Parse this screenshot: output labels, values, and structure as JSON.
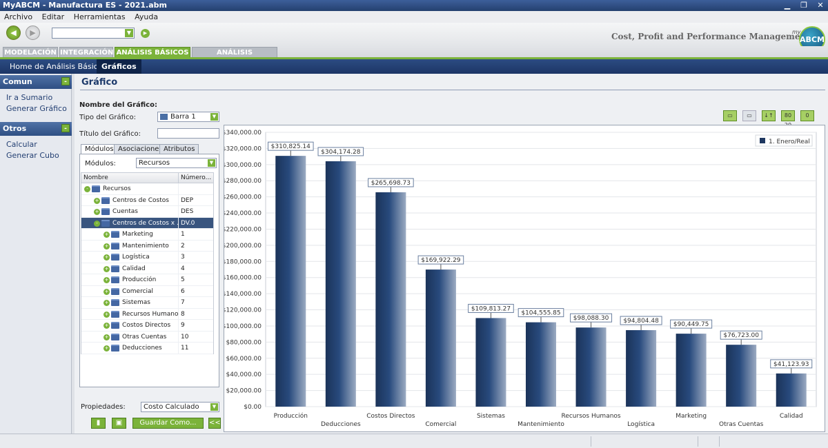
{
  "window": {
    "title": "MyABCM - Manufactura ES - 2021.abm"
  },
  "menu": [
    "Archivo",
    "Editar",
    "Herramientas",
    "Ayuda"
  ],
  "toolbar": {
    "tagline": "Cost, Profit and Performance Management",
    "logo_text": "ABCM",
    "logo_prefix": "my"
  },
  "tabs": [
    "MODELACIÓN",
    "INTEGRACIÓN",
    "ANÁLISIS BÁSICOS",
    "ANÁLISIS AVANZADOS"
  ],
  "subnav": [
    "Home de Análisis Básico",
    "Gráficos"
  ],
  "left_panel": {
    "sections": [
      {
        "title": "Comun",
        "toggle": "-",
        "links": [
          "Ir a Sumario",
          "Generar Gráfico"
        ]
      },
      {
        "title": "Otros",
        "toggle": "-",
        "links": [
          "Calcular",
          "Generar Cubo"
        ]
      }
    ]
  },
  "main": {
    "title": "Gráfico",
    "chart_name_label": "Nombre del Gráfico:",
    "chart_type_label": "Tipo del Gráfico:",
    "chart_type_value": "Barra 1",
    "chart_title_label": "Título del Gráfico:",
    "chart_title_value": "",
    "subtabs": [
      "Módulos",
      "Asociaciones",
      "Atributos"
    ],
    "modules_label": "Módulos:",
    "modules_value": "Recursos",
    "tree_columns": [
      "Nombre",
      "Número..."
    ],
    "tree_rows": [
      {
        "name": "Recursos",
        "num": "",
        "level": 0,
        "expand": "-"
      },
      {
        "name": "Centros de Costos",
        "num": "DEP",
        "level": 1,
        "expand": "+"
      },
      {
        "name": "Cuentas",
        "num": "DES",
        "level": 1,
        "expand": "+"
      },
      {
        "name": "Centros de Costos x ...",
        "num": "DV.0",
        "level": 1,
        "expand": "-",
        "selected": true
      },
      {
        "name": "Marketing",
        "num": "1",
        "level": 2,
        "expand": "+"
      },
      {
        "name": "Mantenimiento",
        "num": "2",
        "level": 2,
        "expand": "+"
      },
      {
        "name": "Logística",
        "num": "3",
        "level": 2,
        "expand": "+"
      },
      {
        "name": "Calidad",
        "num": "4",
        "level": 2,
        "expand": "+"
      },
      {
        "name": "Producción",
        "num": "5",
        "level": 2,
        "expand": "+"
      },
      {
        "name": "Comercial",
        "num": "6",
        "level": 2,
        "expand": "+"
      },
      {
        "name": "Sistemas",
        "num": "7",
        "level": 2,
        "expand": "+"
      },
      {
        "name": "Recursos Humanos",
        "num": "8",
        "level": 2,
        "expand": "+"
      },
      {
        "name": "Costos Directos",
        "num": "9",
        "level": 2,
        "expand": "+"
      },
      {
        "name": "Otras Cuentas",
        "num": "10",
        "level": 2,
        "expand": "+"
      },
      {
        "name": "Deducciones",
        "num": "11",
        "level": 2,
        "expand": "+"
      }
    ],
    "properties_label": "Propiedades:",
    "properties_value": "Costo Calculado",
    "save_as_label": "Guardar Como...",
    "collapse_label": "<<",
    "chart_buttons": [
      "▭",
      "▭",
      "↓↑",
      "80 20",
      "0"
    ]
  },
  "colors": {
    "accent_green": "#7bb33a",
    "nav_blue": "#1c3566",
    "bar_dark": "#1e3760"
  },
  "chart_data": {
    "type": "bar",
    "categories": [
      "Producción",
      "Deducciones",
      "Costos Directos",
      "Comercial",
      "Sistemas",
      "Mantenimiento",
      "Recursos Humanos",
      "Logística",
      "Marketing",
      "Otras Cuentas",
      "Calidad"
    ],
    "series": [
      {
        "name": "1. Enero/Real",
        "values": [
          310825.14,
          304174.28,
          265698.73,
          169922.29,
          109813.27,
          104555.85,
          98088.3,
          94804.48,
          90449.75,
          76723.0,
          41123.93
        ]
      }
    ],
    "data_labels": [
      "$310,825.14",
      "$304,174.28",
      "$265,698.73",
      "$169,922.29",
      "$109,813.27",
      "$104,555.85",
      "$98,088.30",
      "$94,804.48",
      "$90,449.75",
      "$76,723.00",
      "$41,123.93"
    ],
    "ylim": [
      0,
      340000
    ],
    "yticks": [
      "$0.00",
      "$20,000.00",
      "$40,000.00",
      "$60,000.00",
      "$80,000.00",
      "$100,000.00",
      "$120,000.00",
      "$140,000.00",
      "$160,000.00",
      "$180,000.00",
      "$200,000.00",
      "$220,000.00",
      "$240,000.00",
      "$260,000.00",
      "$280,000.00",
      "$300,000.00",
      "$320,000.00",
      "$340,000.00"
    ],
    "grid": true,
    "legend": "top-right"
  }
}
